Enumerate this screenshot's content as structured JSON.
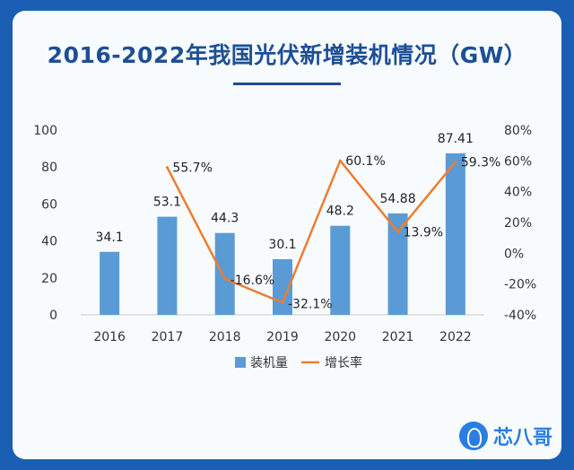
{
  "title": "2016-2022年我国光伏新增装机情况（GW）",
  "brand": {
    "name": "芯八哥",
    "icon": "bird-logo-icon"
  },
  "colors": {
    "bars": "#5b9bd5",
    "line": "#ed7d31",
    "title": "#1d4f96",
    "frame": "#1a5fb4"
  },
  "chart_data": {
    "type": "bar",
    "categories": [
      "2016",
      "2017",
      "2018",
      "2019",
      "2020",
      "2021",
      "2022"
    ],
    "series": [
      {
        "name": "装机量",
        "type": "bar",
        "axis": "left",
        "values": [
          34.1,
          53.1,
          44.3,
          30.1,
          48.2,
          54.88,
          87.41
        ],
        "labels": [
          "34.1",
          "53.1",
          "44.3",
          "30.1",
          "48.2",
          "54.88",
          "87.41"
        ]
      },
      {
        "name": "增长率",
        "type": "line",
        "axis": "right",
        "values": [
          null,
          55.7,
          -16.6,
          -32.1,
          60.1,
          13.9,
          59.3
        ],
        "labels": [
          "",
          "55.7%",
          "-16.6%",
          "-32.1%",
          "60.1%",
          "13.9%",
          "59.3%"
        ]
      }
    ],
    "y_left": {
      "min": 0,
      "max": 100,
      "ticks": [
        "0",
        "20",
        "40",
        "60",
        "80",
        "100"
      ]
    },
    "y_right": {
      "min": -40,
      "max": 80,
      "ticks": [
        "-40%",
        "-20%",
        "0%",
        "20%",
        "40%",
        "60%",
        "80%"
      ]
    },
    "grid": false,
    "legend": "bottom"
  }
}
